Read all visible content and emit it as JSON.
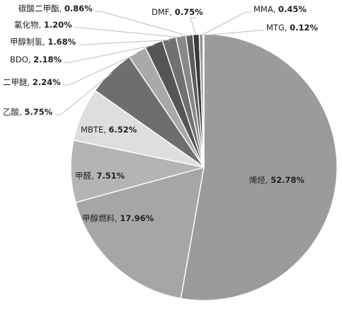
{
  "chart_data": {
    "type": "pie",
    "title": "",
    "legend": "none",
    "slices": [
      {
        "label": "烯烃",
        "value_label": "52.78%",
        "value": 52.78,
        "color": "#9b9b9b"
      },
      {
        "label": "甲醇燃料",
        "value_label": "17.96%",
        "value": 17.96,
        "color": "#a6a6a6"
      },
      {
        "label": "甲醛",
        "value_label": "7.51%",
        "value": 7.51,
        "color": "#b4b4b4"
      },
      {
        "label": "MBTE",
        "value_label": "6.52%",
        "value": 6.52,
        "color": "#dedede"
      },
      {
        "label": "乙酸",
        "value_label": "5.75%",
        "value": 5.75,
        "color": "#6e6e6e"
      },
      {
        "label": "二甲醚",
        "value_label": "2.24%",
        "value": 2.24,
        "color": "#a9a9a9"
      },
      {
        "label": "BDO",
        "value_label": "2.18%",
        "value": 2.18,
        "color": "#555555"
      },
      {
        "label": "甲醇制氢",
        "value_label": "1.68%",
        "value": 1.68,
        "color": "#707070"
      },
      {
        "label": "氯化物",
        "value_label": "1.20%",
        "value": 1.2,
        "color": "#888888"
      },
      {
        "label": "碳酸二甲酯",
        "value_label": "0.86%",
        "value": 0.86,
        "color": "#5c5c5c"
      },
      {
        "label": "DMF",
        "value_label": "0.75%",
        "value": 0.75,
        "color": "#3a3a3a"
      },
      {
        "label": "MMA",
        "value_label": "0.45%",
        "value": 0.45,
        "color": "#949494"
      },
      {
        "label": "MTG",
        "value_label": "0.12%",
        "value": 0.12,
        "color": "#2a2a2a"
      }
    ]
  }
}
